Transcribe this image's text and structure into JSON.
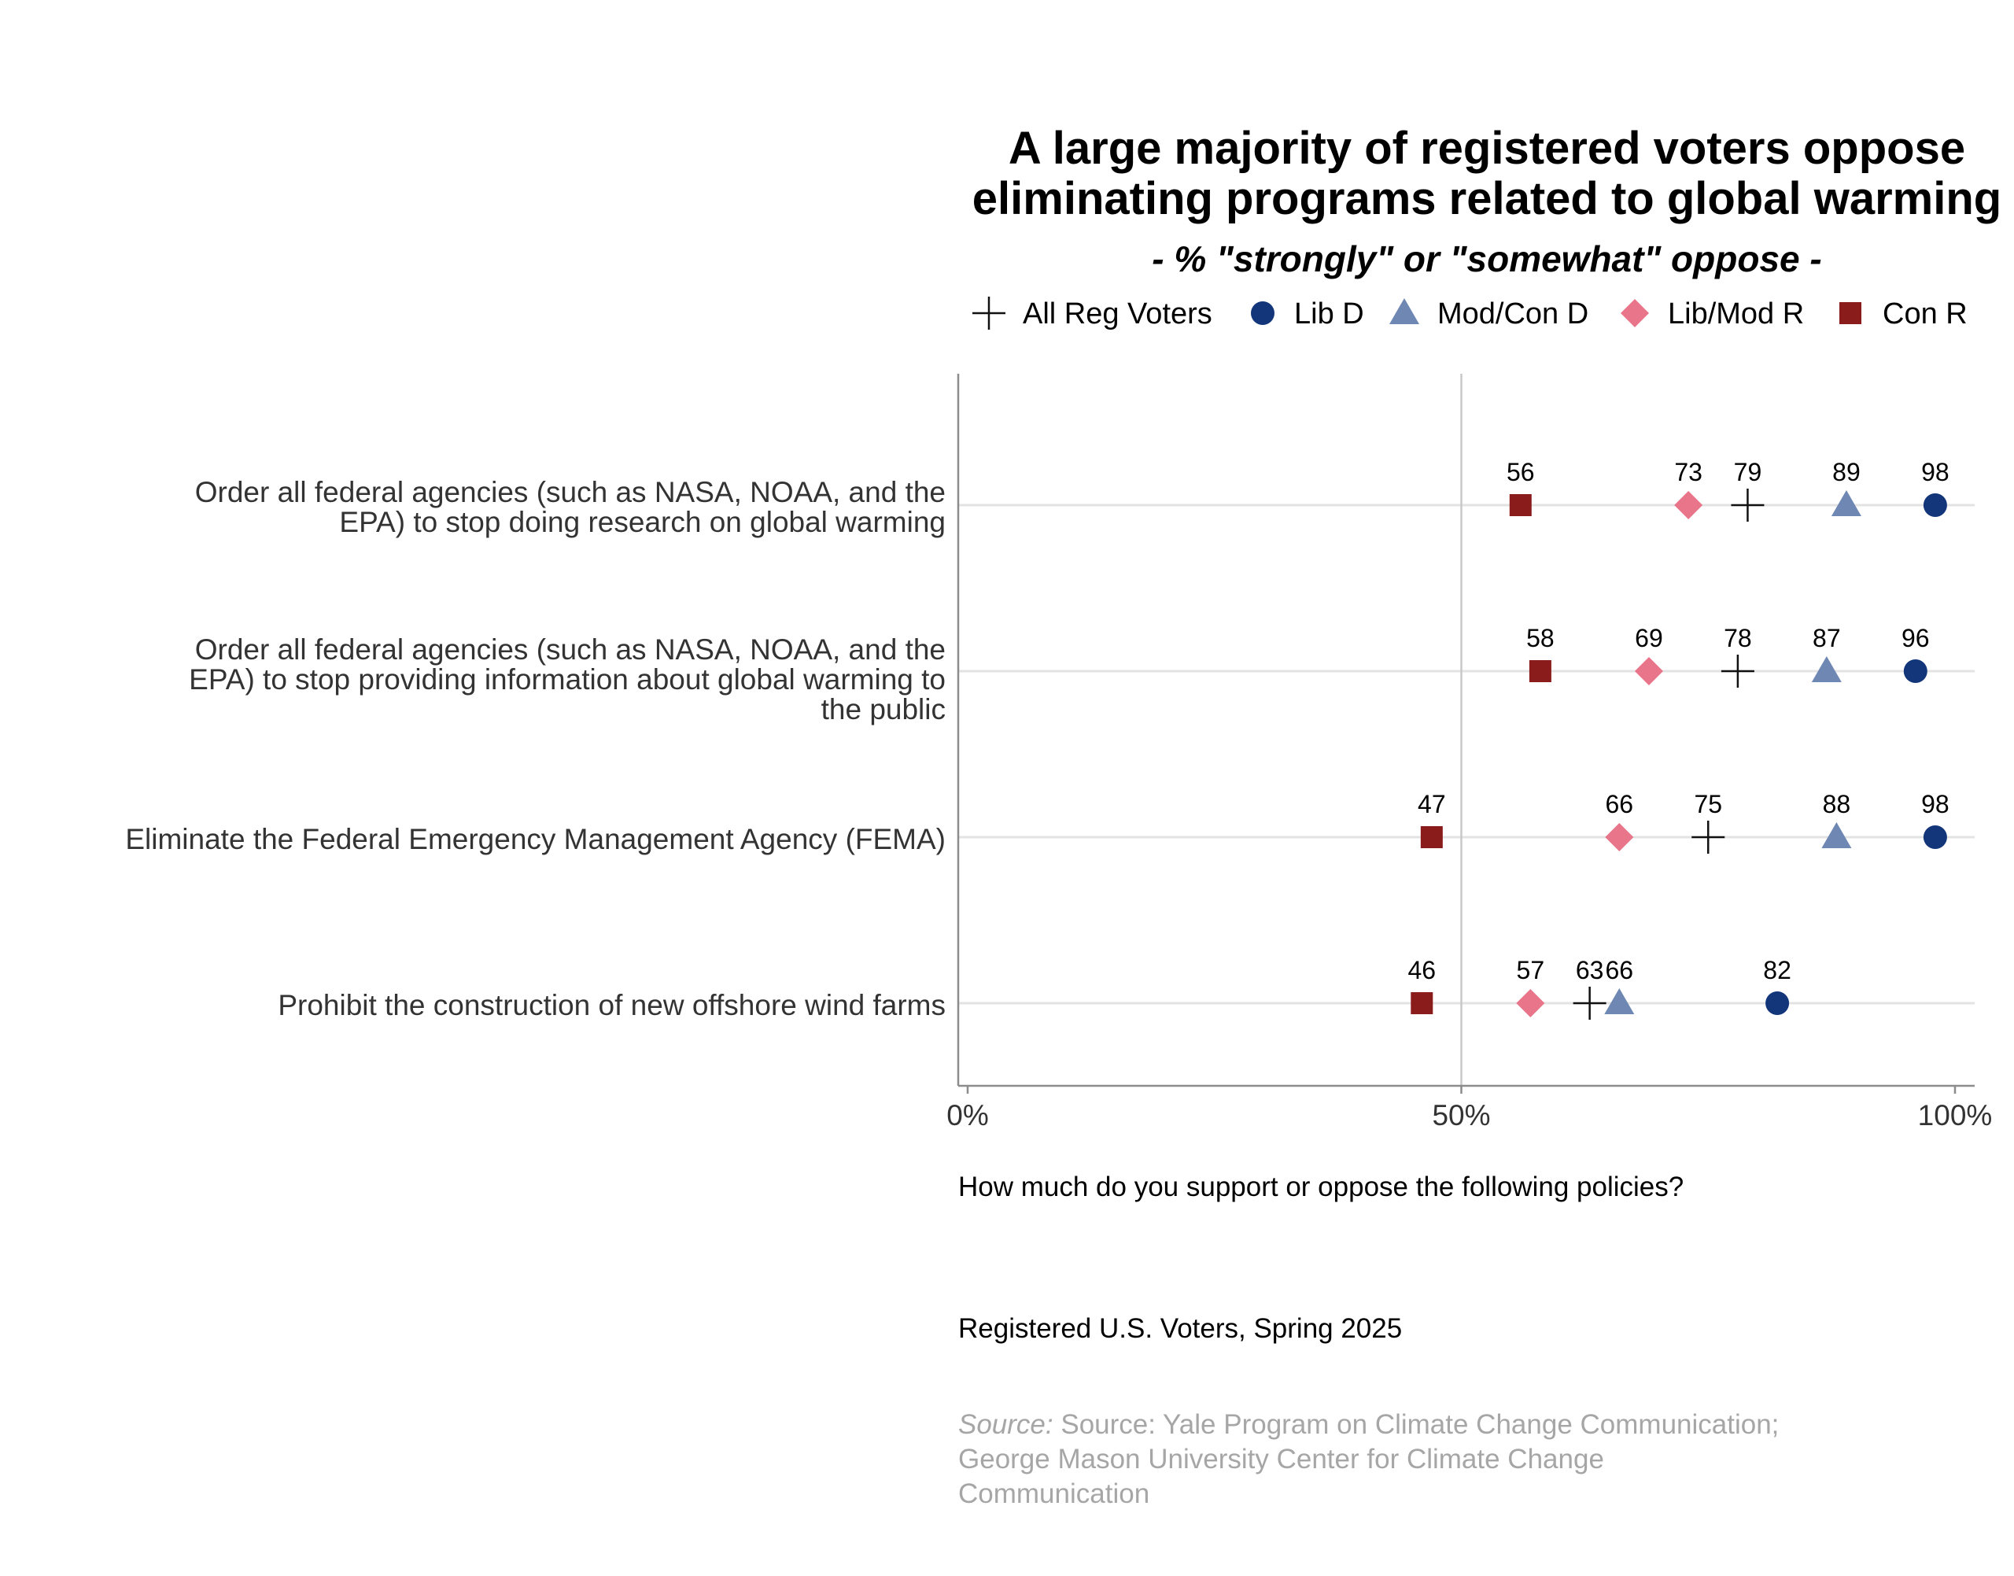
{
  "chart_data": {
    "type": "scatter",
    "title": [
      "A large majority of registered voters oppose",
      "eliminating programs related to global warming"
    ],
    "subtitle": "- % \"strongly\" or \"somewhat\" oppose -",
    "legend_position": "top",
    "series": [
      {
        "name": "All Reg Voters",
        "marker": "cross",
        "color": "#111111",
        "values": [
          79,
          78,
          75,
          63
        ]
      },
      {
        "name": "Lib D",
        "marker": "circle",
        "color": "#13357a",
        "values": [
          98,
          96,
          98,
          82
        ]
      },
      {
        "name": "Mod/Con D",
        "marker": "triangle",
        "color": "#6e87b3",
        "values": [
          89,
          87,
          88,
          66
        ]
      },
      {
        "name": "Lib/Mod R",
        "marker": "diamond",
        "color": "#e8758a",
        "values": [
          73,
          69,
          66,
          57
        ]
      },
      {
        "name": "Con R",
        "marker": "square",
        "color": "#8a1c1c",
        "values": [
          56,
          58,
          47,
          46
        ]
      }
    ],
    "categories": [
      [
        "Order all federal agencies (such as NASA, NOAA, and the",
        "EPA) to stop doing research on global warming"
      ],
      [
        "Order all federal agencies (such as NASA, NOAA, and the",
        "EPA) to stop providing information about global warming to",
        "the public"
      ],
      [
        "Eliminate the Federal Emergency Management Agency (FEMA)"
      ],
      [
        "Prohibit the construction of new offshore wind farms"
      ]
    ],
    "xlim": [
      0,
      100
    ],
    "x_ticks": [
      0,
      50,
      100
    ],
    "x_tick_labels": [
      "0%",
      "50%",
      "100%"
    ],
    "reference_line": 50,
    "grid": "horizontal"
  },
  "caption": {
    "question": "How much do you support or oppose the following policies?",
    "population": "Registered U.S. Voters, Spring 2025",
    "source_prefix": "Source:",
    "source_lines": [
      "Source: Yale Program on Climate Change Communication;",
      "George Mason University Center for Climate Change",
      "Communication"
    ]
  }
}
